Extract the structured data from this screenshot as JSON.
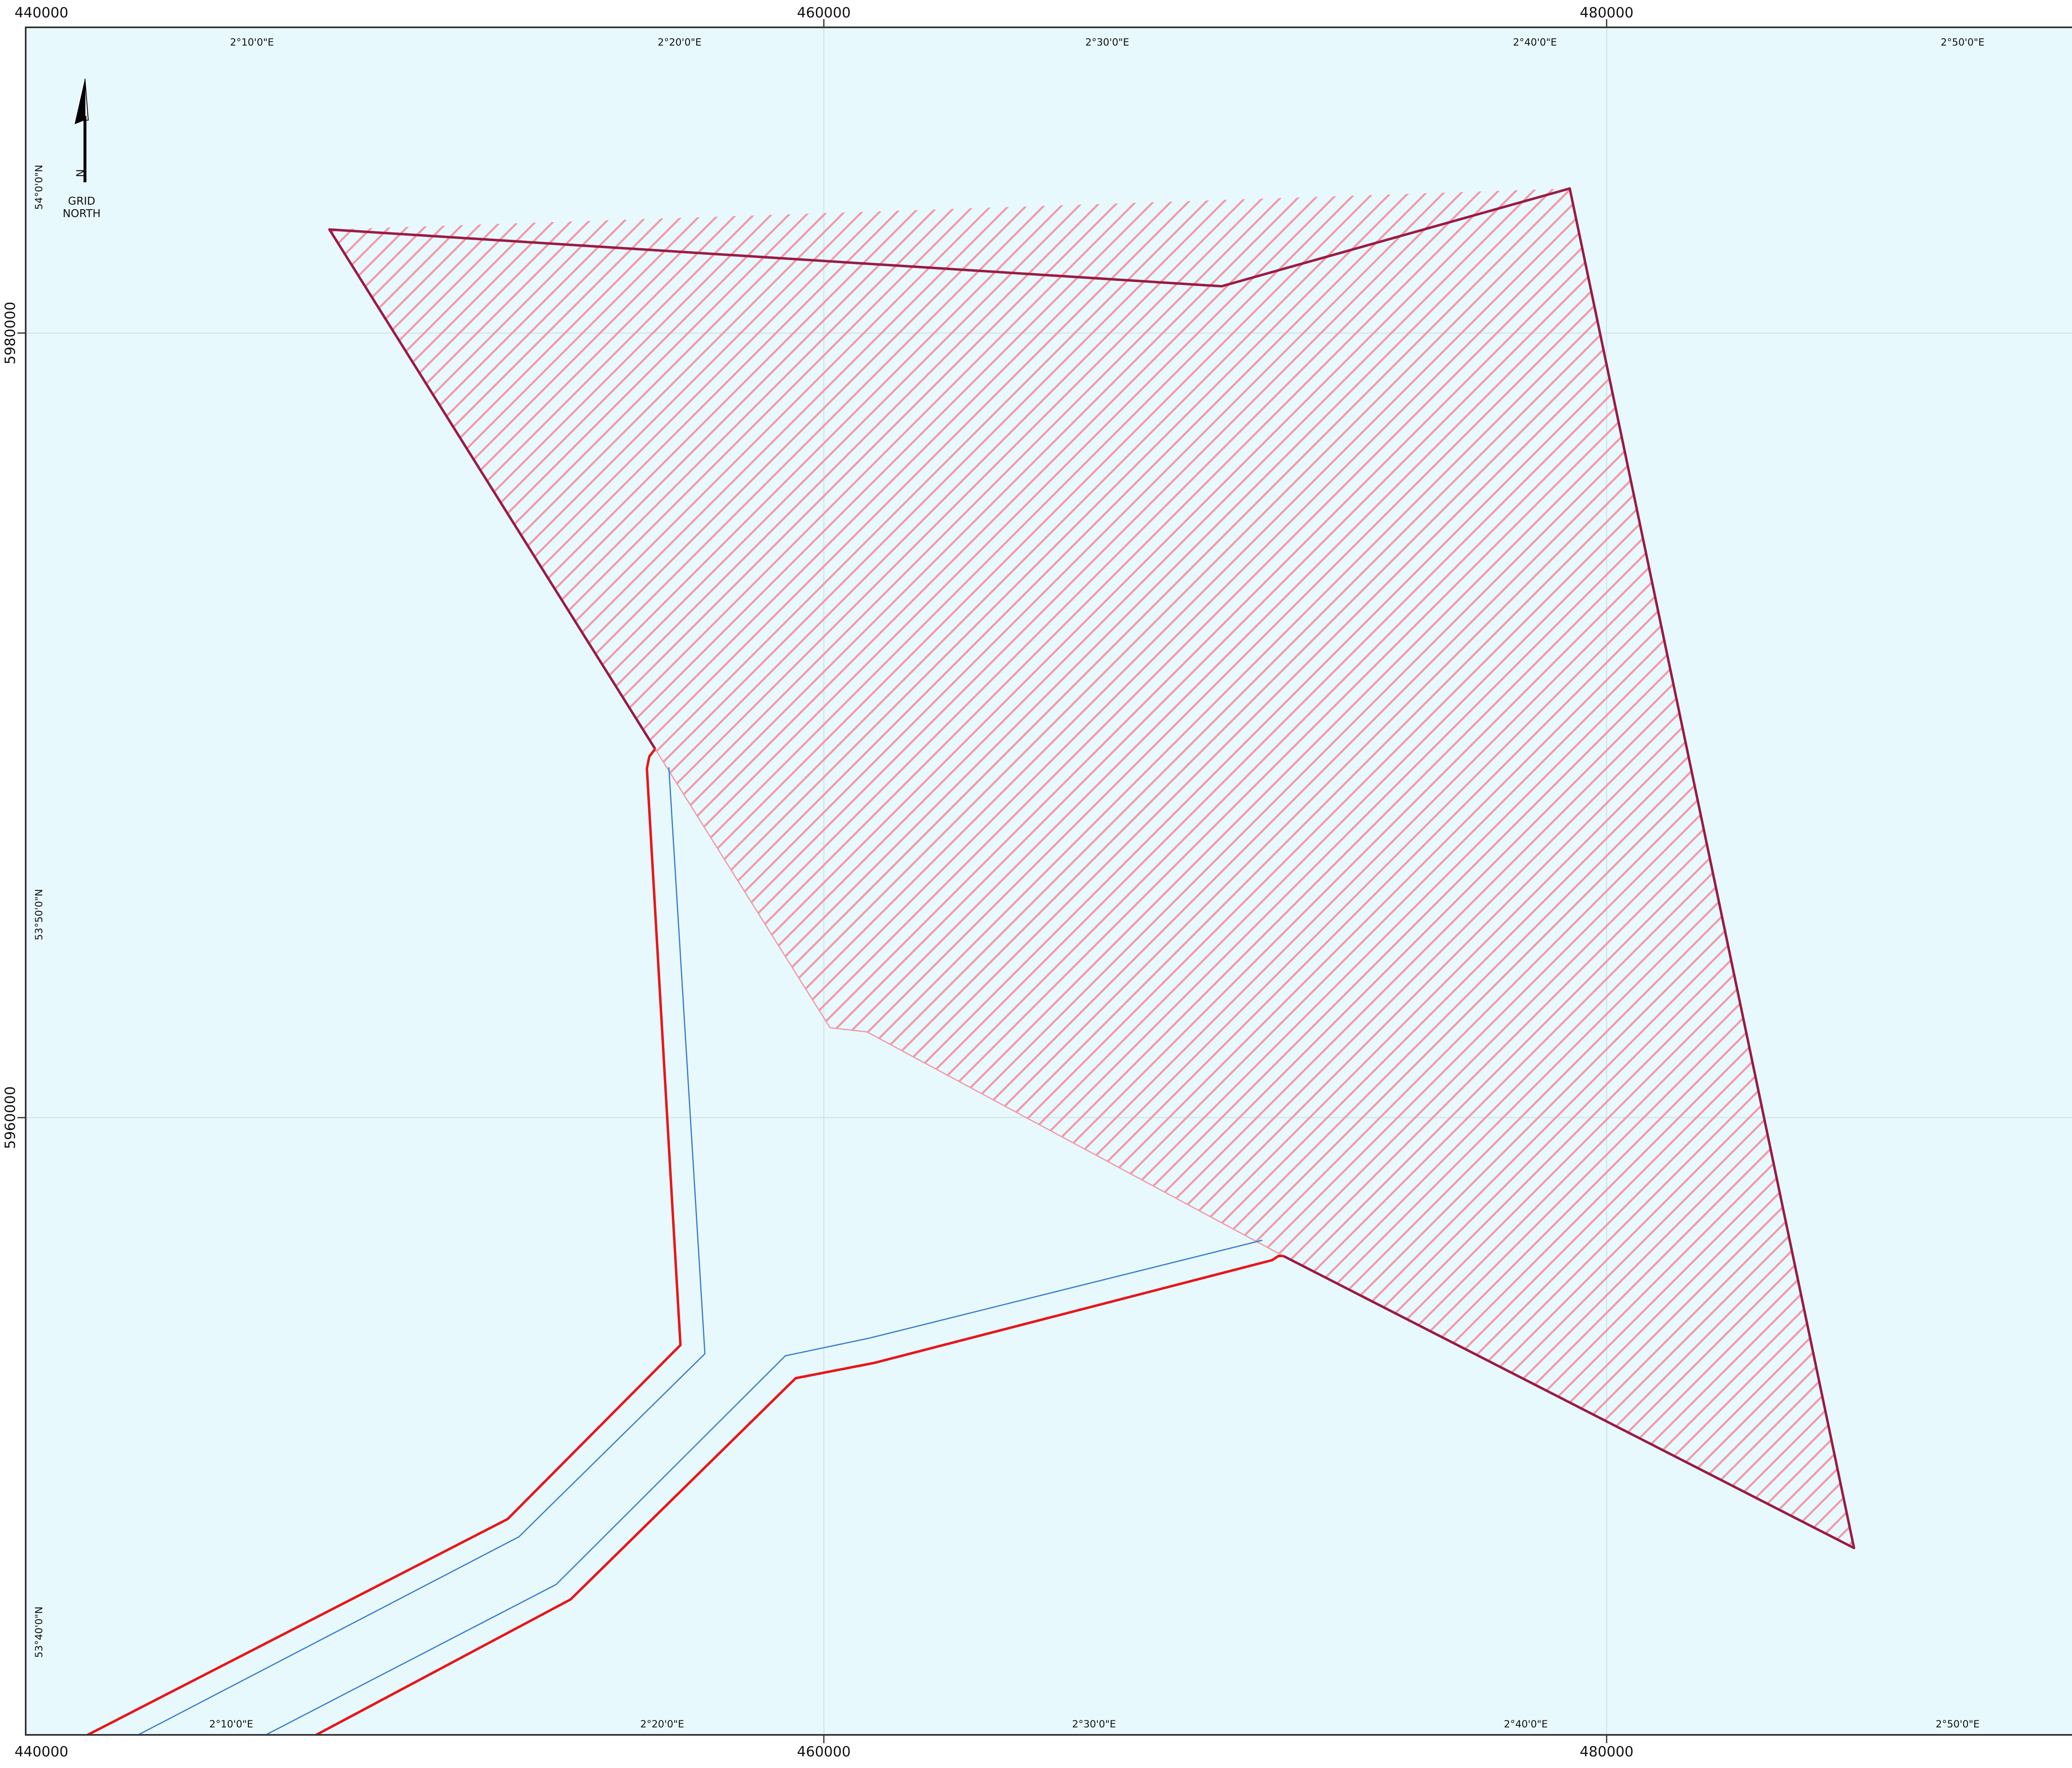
{
  "map": {
    "utm_easting_labels": [
      "440000",
      "460000",
      "480000"
    ],
    "utm_northing_labels": [
      "5980000",
      "5960000"
    ],
    "longitude_labels": [
      "2°10'0\"E",
      "2°20'0\"E",
      "2°30'0\"E",
      "2°40'0\"E",
      "2°50'0\"E"
    ],
    "latitude_labels": [
      "54°0'0\"N",
      "53°50'0\"N",
      "53°40'0\"N"
    ],
    "north_arrow": {
      "letter": "N",
      "line1": "GRID",
      "line2": "NORTH"
    },
    "colors": {
      "sea": "#e8f9fd",
      "frame": "#333333",
      "grid": "#d6e5ea",
      "area_outline": "#9b1b45",
      "area_hatch": "#f29aa8",
      "cable_corridor_outline": "#e8161b",
      "cable_route": "#3b7fd0"
    },
    "features": [
      {
        "name": "hatched-area-boundary",
        "kind": "polygon"
      },
      {
        "name": "cable-corridor",
        "kind": "polyline"
      },
      {
        "name": "cable-route",
        "kind": "polyline"
      }
    ]
  }
}
